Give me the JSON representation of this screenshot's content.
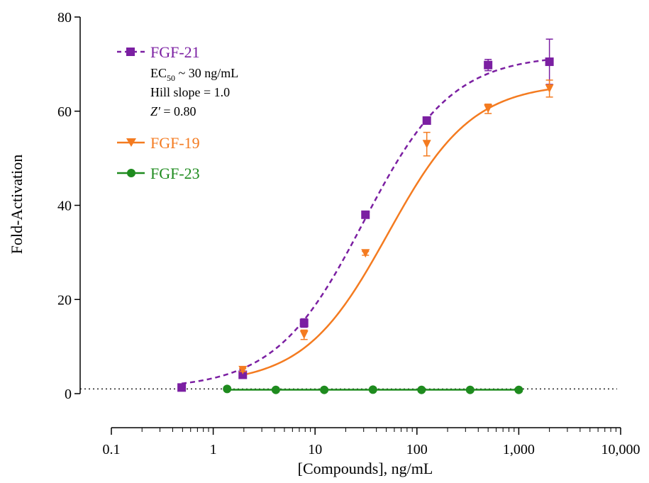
{
  "chart_data": {
    "type": "scatter",
    "xlabel": "[Compounds], ng/mL",
    "ylabel": "Fold-Activation",
    "x_scale": "log",
    "xlim": [
      0.1,
      10000
    ],
    "ylim": [
      0,
      80
    ],
    "x_ticks": [
      "0.1",
      "1",
      "10",
      "100",
      "1,000",
      "10,000"
    ],
    "y_ticks": [
      "0",
      "20",
      "40",
      "60",
      "80"
    ],
    "baseline_value": 1,
    "legend_position": "top-left",
    "series": [
      {
        "name": "FGF-21",
        "color": "#7B1FA2",
        "marker": "square",
        "line_style": "dashed",
        "x": [
          0.49,
          1.95,
          7.8,
          31.25,
          125,
          500,
          2000
        ],
        "y": [
          1.3,
          4.0,
          15.0,
          38.0,
          58.0,
          69.8,
          70.5
        ],
        "error": [
          0,
          0.3,
          0.9,
          0.3,
          0.5,
          1.2,
          4.8
        ],
        "fit": {
          "bottom": 1.0,
          "top": 72.0,
          "ec50": 30,
          "hill": 1.0
        }
      },
      {
        "name": "FGF-19",
        "color": "#F47B20",
        "marker": "triangle-down",
        "line_style": "solid",
        "x": [
          1.95,
          7.8,
          31.25,
          125,
          500,
          2000
        ],
        "y": [
          5.0,
          12.5,
          29.8,
          53.0,
          60.5,
          64.8
        ],
        "error": [
          0.3,
          1.0,
          0.4,
          2.5,
          1.0,
          1.8
        ],
        "fit": {
          "bottom": 2.0,
          "top": 66.0,
          "ec50": 52,
          "hill": 1.05
        }
      },
      {
        "name": "FGF-23",
        "color": "#1E8B1E",
        "marker": "circle",
        "line_style": "solid",
        "x": [
          1.37,
          4.12,
          12.3,
          37,
          111,
          333,
          1000
        ],
        "y": [
          1.0,
          0.8,
          0.8,
          0.85,
          0.8,
          0.8,
          0.8
        ],
        "error": [
          0,
          0,
          0,
          0,
          0,
          0,
          0
        ]
      }
    ],
    "annotation": {
      "ec50_prefix": "EC",
      "ec50_sub": "50",
      "ec50_rest": " ~ 30 ng/mL",
      "hill": "Hill slope = 1.0",
      "z_prefix": "Z'",
      "z_rest": " = 0.80"
    }
  }
}
